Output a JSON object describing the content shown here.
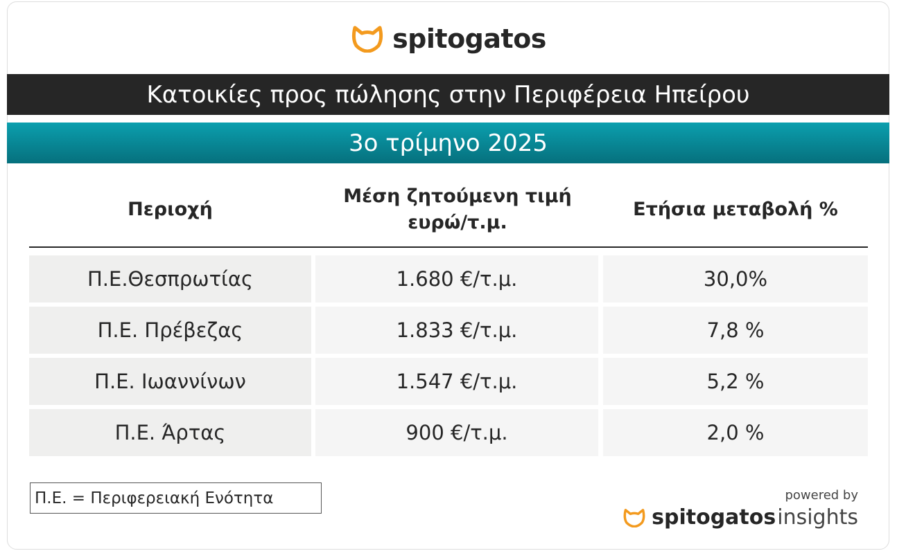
{
  "logo": {
    "text": "spitogatos"
  },
  "header": {
    "title": "Κατοικίες προς πώλησης στην Περιφέρεια Ηπείρου",
    "subtitle": "3ο τρίμηνο 2025"
  },
  "table": {
    "columns": [
      "Περιοχή",
      "Μέση ζητούμενη τιμή ευρώ/τ.μ.",
      "Ετήσια μεταβολή %"
    ],
    "rows": [
      [
        "Π.Ε.Θεσπρωτίας",
        "1.680 €/τ.μ.",
        "30,0%"
      ],
      [
        "Π.Ε. Πρέβεζας",
        "1.833 €/τ.μ.",
        "7,8 %"
      ],
      [
        "Π.Ε. Ιωαννίνων",
        "1.547 €/τ.μ.",
        "5,2 %"
      ],
      [
        "Π.Ε. Άρτας",
        "900 €/τ.μ.",
        "2,0 %"
      ]
    ]
  },
  "footnote": "Π.Ε. = Περιφερειακή Ενότητα",
  "footer": {
    "powered_by": "powered by",
    "brand": "spitogatos",
    "product": "insights"
  }
}
